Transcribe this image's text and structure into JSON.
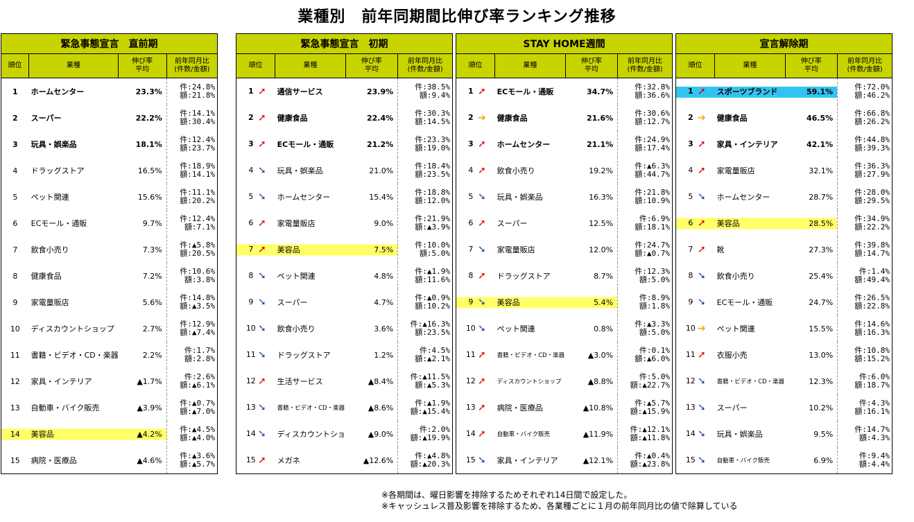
{
  "title": "業種別　前年同期間比伸び率ランキング推移",
  "headers": {
    "rank": "順位",
    "industry": "業種",
    "rate": [
      "伸び率",
      "平均"
    ],
    "yoy": [
      "前年同月比",
      "(件数/金額)"
    ]
  },
  "colors": {
    "header_bg": "#c8d400",
    "highlight_yellow": "#ffff66",
    "highlight_blue": "#33c3f0",
    "arrow_up": "#e00000",
    "arrow_down": "#1f4e9a",
    "arrow_flat": "#f0a800"
  },
  "panels": [
    {
      "period": "緊急事態宣言　直前期",
      "rows": [
        {
          "rank": "1",
          "arrow": "",
          "industry": "ホームセンター",
          "rate": "23.3%",
          "ken": "件:24.8%",
          "gaku": "額:21.8%",
          "bold": true,
          "hl": "",
          "small": false
        },
        {
          "rank": "2",
          "arrow": "",
          "industry": "スーパー",
          "rate": "22.2%",
          "ken": "件:14.1%",
          "gaku": "額:30.4%",
          "bold": true,
          "hl": "",
          "small": false
        },
        {
          "rank": "3",
          "arrow": "",
          "industry": "玩具・娯楽品",
          "rate": "18.1%",
          "ken": "件:12.4%",
          "gaku": "額:23.7%",
          "bold": true,
          "hl": "",
          "small": false
        },
        {
          "rank": "4",
          "arrow": "",
          "industry": "ドラッグストア",
          "rate": "16.5%",
          "ken": "件:18.9%",
          "gaku": "額:14.1%",
          "bold": false,
          "hl": "",
          "small": false
        },
        {
          "rank": "5",
          "arrow": "",
          "industry": "ペット関連",
          "rate": "15.6%",
          "ken": "件:11.1%",
          "gaku": "額:20.2%",
          "bold": false,
          "hl": "",
          "small": false
        },
        {
          "rank": "6",
          "arrow": "",
          "industry": "ECモール・通販",
          "rate": "9.7%",
          "ken": "件:12.4%",
          "gaku": "額:7.1%",
          "bold": false,
          "hl": "",
          "small": false
        },
        {
          "rank": "7",
          "arrow": "",
          "industry": "飲食小売り",
          "rate": "7.3%",
          "ken": "件:▲5.8%",
          "gaku": "額:20.5%",
          "bold": false,
          "hl": "",
          "small": false
        },
        {
          "rank": "8",
          "arrow": "",
          "industry": "健康食品",
          "rate": "7.2%",
          "ken": "件:10.6%",
          "gaku": "額:3.8%",
          "bold": false,
          "hl": "",
          "small": false
        },
        {
          "rank": "9",
          "arrow": "",
          "industry": "家電量販店",
          "rate": "5.6%",
          "ken": "件:14.8%",
          "gaku": "額:▲3.5%",
          "bold": false,
          "hl": "",
          "small": false
        },
        {
          "rank": "10",
          "arrow": "",
          "industry": "ディスカウントショップ",
          "rate": "2.7%",
          "ken": "件:12.9%",
          "gaku": "額:▲7.4%",
          "bold": false,
          "hl": "",
          "small": false
        },
        {
          "rank": "11",
          "arrow": "",
          "industry": "書籍・ビデオ・CD・楽器",
          "rate": "2.2%",
          "ken": "件:1.7%",
          "gaku": "額:2.8%",
          "bold": false,
          "hl": "",
          "small": false
        },
        {
          "rank": "12",
          "arrow": "",
          "industry": "家具・インテリア",
          "rate": "▲1.7%",
          "ken": "件:2.6%",
          "gaku": "額:▲6.1%",
          "bold": false,
          "hl": "",
          "small": false
        },
        {
          "rank": "13",
          "arrow": "",
          "industry": "自動車・バイク販売",
          "rate": "▲3.9%",
          "ken": "件:▲0.7%",
          "gaku": "額:▲7.0%",
          "bold": false,
          "hl": "",
          "small": false
        },
        {
          "rank": "14",
          "arrow": "",
          "industry": "美容品",
          "rate": "▲4.2%",
          "ken": "件:▲4.5%",
          "gaku": "額:▲4.0%",
          "bold": false,
          "hl": "yellow",
          "small": false
        },
        {
          "rank": "15",
          "arrow": "",
          "industry": "病院・医療品",
          "rate": "▲4.6%",
          "ken": "件:▲3.6%",
          "gaku": "額:▲5.7%",
          "bold": false,
          "hl": "",
          "small": false
        }
      ]
    },
    {
      "period": "緊急事態宣言　初期",
      "rows": [
        {
          "rank": "1",
          "arrow": "up",
          "industry": "通信サービス",
          "rate": "23.9%",
          "ken": "件:38.5%",
          "gaku": "額:9.4%",
          "bold": true,
          "hl": "",
          "small": false
        },
        {
          "rank": "2",
          "arrow": "up",
          "industry": "健康食品",
          "rate": "22.4%",
          "ken": "件:30.3%",
          "gaku": "額:14.5%",
          "bold": true,
          "hl": "",
          "small": false
        },
        {
          "rank": "3",
          "arrow": "up",
          "industry": "ECモール・通販",
          "rate": "21.2%",
          "ken": "件:23.3%",
          "gaku": "額:19.0%",
          "bold": true,
          "hl": "",
          "small": false
        },
        {
          "rank": "4",
          "arrow": "down",
          "industry": "玩具・娯楽品",
          "rate": "21.0%",
          "ken": "件:18.4%",
          "gaku": "額:23.5%",
          "bold": false,
          "hl": "",
          "small": false
        },
        {
          "rank": "5",
          "arrow": "down",
          "industry": "ホームセンター",
          "rate": "15.4%",
          "ken": "件:18.8%",
          "gaku": "額:12.0%",
          "bold": false,
          "hl": "",
          "small": false
        },
        {
          "rank": "6",
          "arrow": "up",
          "industry": "家電量販店",
          "rate": "9.0%",
          "ken": "件:21.9%",
          "gaku": "額:▲3.9%",
          "bold": false,
          "hl": "",
          "small": false
        },
        {
          "rank": "7",
          "arrow": "up",
          "industry": "美容品",
          "rate": "7.5%",
          "ken": "件:10.0%",
          "gaku": "額:5.0%",
          "bold": false,
          "hl": "yellow",
          "small": false
        },
        {
          "rank": "8",
          "arrow": "down",
          "industry": "ペット関連",
          "rate": "4.8%",
          "ken": "件:▲1.9%",
          "gaku": "額:11.6%",
          "bold": false,
          "hl": "",
          "small": false
        },
        {
          "rank": "9",
          "arrow": "down",
          "industry": "スーパー",
          "rate": "4.7%",
          "ken": "件:▲0.9%",
          "gaku": "額:10.2%",
          "bold": false,
          "hl": "",
          "small": false
        },
        {
          "rank": "10",
          "arrow": "down",
          "industry": "飲食小売り",
          "rate": "3.6%",
          "ken": "件:▲16.3%",
          "gaku": "額:23.5%",
          "bold": false,
          "hl": "",
          "small": false
        },
        {
          "rank": "11",
          "arrow": "down",
          "industry": "ドラッグストア",
          "rate": "1.2%",
          "ken": "件:4.5%",
          "gaku": "額:▲2.1%",
          "bold": false,
          "hl": "",
          "small": false
        },
        {
          "rank": "12",
          "arrow": "up",
          "industry": "生活サービス",
          "rate": "▲8.4%",
          "ken": "件:▲11.5%",
          "gaku": "額:▲5.3%",
          "bold": false,
          "hl": "",
          "small": false
        },
        {
          "rank": "13",
          "arrow": "down",
          "industry": "書籍・ビデオ・CD・楽器",
          "rate": "▲8.6%",
          "ken": "件:▲1.9%",
          "gaku": "額:▲15.4%",
          "bold": false,
          "hl": "",
          "small": true
        },
        {
          "rank": "14",
          "arrow": "down",
          "industry": "ディスカウントショップ",
          "rate": "▲9.0%",
          "ken": "件:2.0%",
          "gaku": "額:▲19.9%",
          "bold": false,
          "hl": "",
          "small": false
        },
        {
          "rank": "15",
          "arrow": "up",
          "industry": "メガネ",
          "rate": "▲12.6%",
          "ken": "件:▲4.8%",
          "gaku": "額:▲20.3%",
          "bold": false,
          "hl": "",
          "small": false
        }
      ]
    },
    {
      "period": "STAY HOME週間",
      "rows": [
        {
          "rank": "1",
          "arrow": "up",
          "industry": "ECモール・通販",
          "rate": "34.7%",
          "ken": "件:32.8%",
          "gaku": "額:36.6%",
          "bold": true,
          "hl": "",
          "small": false
        },
        {
          "rank": "2",
          "arrow": "flat",
          "industry": "健康食品",
          "rate": "21.6%",
          "ken": "件:30.6%",
          "gaku": "額:12.7%",
          "bold": true,
          "hl": "",
          "small": false
        },
        {
          "rank": "3",
          "arrow": "up",
          "industry": "ホームセンター",
          "rate": "21.1%",
          "ken": "件:24.9%",
          "gaku": "額:17.4%",
          "bold": true,
          "hl": "",
          "small": false
        },
        {
          "rank": "4",
          "arrow": "up",
          "industry": "飲食小売り",
          "rate": "19.2%",
          "ken": "件:▲6.3%",
          "gaku": "額:44.7%",
          "bold": false,
          "hl": "",
          "small": false
        },
        {
          "rank": "5",
          "arrow": "down",
          "industry": "玩具・娯楽品",
          "rate": "16.3%",
          "ken": "件:21.8%",
          "gaku": "額:10.9%",
          "bold": false,
          "hl": "",
          "small": false
        },
        {
          "rank": "6",
          "arrow": "up",
          "industry": "スーパー",
          "rate": "12.5%",
          "ken": "件:6.9%",
          "gaku": "額:18.1%",
          "bold": false,
          "hl": "",
          "small": false
        },
        {
          "rank": "7",
          "arrow": "down",
          "industry": "家電量販店",
          "rate": "12.0%",
          "ken": "件:24.7%",
          "gaku": "額:▲0.7%",
          "bold": false,
          "hl": "",
          "small": false
        },
        {
          "rank": "8",
          "arrow": "up",
          "industry": "ドラッグストア",
          "rate": "8.7%",
          "ken": "件:12.3%",
          "gaku": "額:5.0%",
          "bold": false,
          "hl": "",
          "small": false
        },
        {
          "rank": "9",
          "arrow": "down",
          "industry": "美容品",
          "rate": "5.4%",
          "ken": "件:8.9%",
          "gaku": "額:1.8%",
          "bold": false,
          "hl": "yellow",
          "small": false
        },
        {
          "rank": "10",
          "arrow": "down",
          "industry": "ペット関連",
          "rate": "0.8%",
          "ken": "件:▲3.3%",
          "gaku": "額:5.0%",
          "bold": false,
          "hl": "",
          "small": false
        },
        {
          "rank": "11",
          "arrow": "up",
          "industry": "書籍・ビデオ・CD・楽器",
          "rate": "▲3.0%",
          "ken": "件:0.1%",
          "gaku": "額:▲6.0%",
          "bold": false,
          "hl": "",
          "small": true
        },
        {
          "rank": "12",
          "arrow": "up",
          "industry": "ディスカウントショップ",
          "rate": "▲8.8%",
          "ken": "件:5.0%",
          "gaku": "額:▲22.7%",
          "bold": false,
          "hl": "",
          "small": true
        },
        {
          "rank": "13",
          "arrow": "up",
          "industry": "病院・医療品",
          "rate": "▲10.8%",
          "ken": "件:▲5.7%",
          "gaku": "額:▲15.9%",
          "bold": false,
          "hl": "",
          "small": false
        },
        {
          "rank": "14",
          "arrow": "up",
          "industry": "自動車・バイク販売",
          "rate": "▲11.9%",
          "ken": "件:▲12.1%",
          "gaku": "額:▲11.8%",
          "bold": false,
          "hl": "",
          "small": true
        },
        {
          "rank": "15",
          "arrow": "down",
          "industry": "家具・インテリア",
          "rate": "▲12.1%",
          "ken": "件:▲0.4%",
          "gaku": "額:▲23.8%",
          "bold": false,
          "hl": "",
          "small": false
        }
      ]
    },
    {
      "period": "宣言解除期",
      "rows": [
        {
          "rank": "1",
          "arrow": "up",
          "industry": "スポーツブランド",
          "rate": "59.1%",
          "ken": "件:72.0%",
          "gaku": "額:46.2%",
          "bold": true,
          "hl": "blue",
          "small": false
        },
        {
          "rank": "2",
          "arrow": "flat",
          "industry": "健康食品",
          "rate": "46.5%",
          "ken": "件:66.8%",
          "gaku": "額:26.2%",
          "bold": true,
          "hl": "",
          "small": false
        },
        {
          "rank": "3",
          "arrow": "up",
          "industry": "家具・インテリア",
          "rate": "42.1%",
          "ken": "件:44.8%",
          "gaku": "額:39.3%",
          "bold": true,
          "hl": "",
          "small": false
        },
        {
          "rank": "4",
          "arrow": "up",
          "industry": "家電量販店",
          "rate": "32.1%",
          "ken": "件:36.3%",
          "gaku": "額:27.9%",
          "bold": false,
          "hl": "",
          "small": false
        },
        {
          "rank": "5",
          "arrow": "down",
          "industry": "ホームセンター",
          "rate": "28.7%",
          "ken": "件:28.0%",
          "gaku": "額:29.5%",
          "bold": false,
          "hl": "",
          "small": false
        },
        {
          "rank": "6",
          "arrow": "up",
          "industry": "美容品",
          "rate": "28.5%",
          "ken": "件:34.9%",
          "gaku": "額:22.2%",
          "bold": false,
          "hl": "yellow",
          "small": false
        },
        {
          "rank": "7",
          "arrow": "up",
          "industry": "靴",
          "rate": "27.3%",
          "ken": "件:39.8%",
          "gaku": "額:14.7%",
          "bold": false,
          "hl": "",
          "small": false
        },
        {
          "rank": "8",
          "arrow": "down",
          "industry": "飲食小売り",
          "rate": "25.4%",
          "ken": "件:1.4%",
          "gaku": "額:49.4%",
          "bold": false,
          "hl": "",
          "small": false
        },
        {
          "rank": "9",
          "arrow": "down",
          "industry": "ECモール・通販",
          "rate": "24.7%",
          "ken": "件:26.5%",
          "gaku": "額:22.8%",
          "bold": false,
          "hl": "",
          "small": false
        },
        {
          "rank": "10",
          "arrow": "flat",
          "industry": "ペット関連",
          "rate": "15.5%",
          "ken": "件:14.6%",
          "gaku": "額:16.3%",
          "bold": false,
          "hl": "",
          "small": false
        },
        {
          "rank": "11",
          "arrow": "up",
          "industry": "衣服小売",
          "rate": "13.0%",
          "ken": "件:10.8%",
          "gaku": "額:15.2%",
          "bold": false,
          "hl": "",
          "small": false
        },
        {
          "rank": "12",
          "arrow": "down",
          "industry": "書籍・ビデオ・CD・楽器",
          "rate": "12.3%",
          "ken": "件:6.0%",
          "gaku": "額:18.7%",
          "bold": false,
          "hl": "",
          "small": true
        },
        {
          "rank": "13",
          "arrow": "down",
          "industry": "スーパー",
          "rate": "10.2%",
          "ken": "件:4.3%",
          "gaku": "額:16.1%",
          "bold": false,
          "hl": "",
          "small": false
        },
        {
          "rank": "14",
          "arrow": "down",
          "industry": "玩具・娯楽品",
          "rate": "9.5%",
          "ken": "件:14.7%",
          "gaku": "額:4.3%",
          "bold": false,
          "hl": "",
          "small": false
        },
        {
          "rank": "15",
          "arrow": "down",
          "industry": "自動車・バイク販売",
          "rate": "6.9%",
          "ken": "件:9.4%",
          "gaku": "額:4.4%",
          "bold": false,
          "hl": "",
          "small": true
        }
      ]
    }
  ],
  "notes": [
    "※各期間は、曜日影響を排除するためそれぞれ14日間で設定した。",
    "※キャッシュレス普及影響を排除するため、各業種ごとに１月の前年同月比の値で除算している"
  ]
}
